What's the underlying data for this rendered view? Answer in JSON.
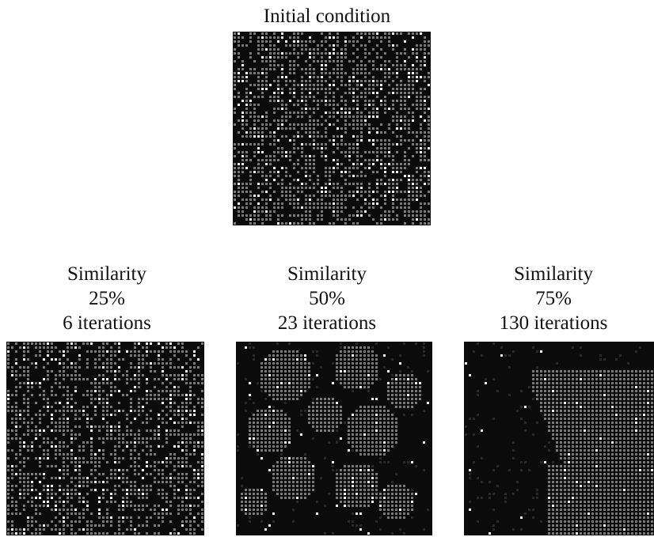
{
  "initial": {
    "title": "Initial condition",
    "density": 0.62,
    "white_fraction": 0.17
  },
  "panels": [
    {
      "key": "p25",
      "title": "Similarity",
      "similarity": "25%",
      "iterations": "6 iterations",
      "density": 0.55,
      "white_fraction": 0.17
    },
    {
      "key": "p50",
      "title": "Similarity",
      "similarity": "50%",
      "iterations": "23 iterations",
      "density": 0.62,
      "white_fraction": 0.07
    },
    {
      "key": "p75",
      "title": "Similarity",
      "similarity": "75%",
      "iterations": "130 iterations",
      "density": 0.6,
      "white_fraction": 0.04
    }
  ],
  "colors": {
    "background": "#0b0b0b",
    "grey_agent": "#7a7a7a",
    "white_agent": "#ffffff"
  }
}
